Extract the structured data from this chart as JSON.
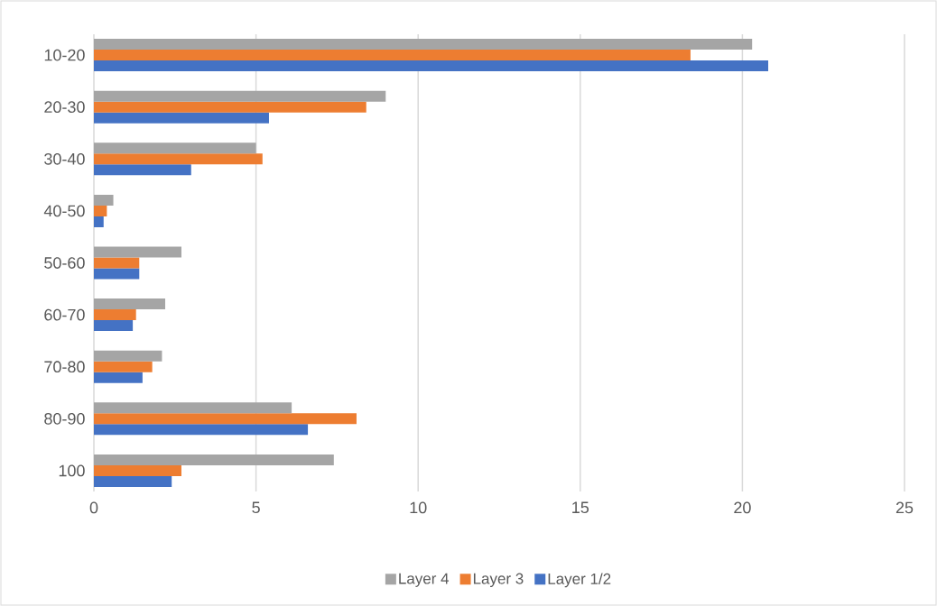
{
  "chart_data": {
    "type": "bar",
    "orientation": "horizontal",
    "categories": [
      "10-20",
      "20-30",
      "30-40",
      "40-50",
      "50-60",
      "60-70",
      "70-80",
      "80-90",
      "100"
    ],
    "series": [
      {
        "name": "Layer 4",
        "color": "#a5a5a5",
        "values": [
          20.3,
          9.0,
          5.0,
          0.6,
          2.7,
          2.2,
          2.1,
          6.1,
          7.4
        ]
      },
      {
        "name": "Layer 3",
        "color": "#ed7d31",
        "values": [
          18.4,
          8.4,
          5.2,
          0.4,
          1.4,
          1.3,
          1.8,
          8.1,
          2.7
        ]
      },
      {
        "name": "Layer 1/2",
        "color": "#4472c4",
        "values": [
          20.8,
          5.4,
          3.0,
          0.3,
          1.4,
          1.2,
          1.5,
          6.6,
          2.4
        ]
      }
    ],
    "xlim": [
      0,
      25
    ],
    "xticks": [
      0,
      5,
      10,
      15,
      20,
      25
    ],
    "grid": "x",
    "legend": "bottom"
  }
}
